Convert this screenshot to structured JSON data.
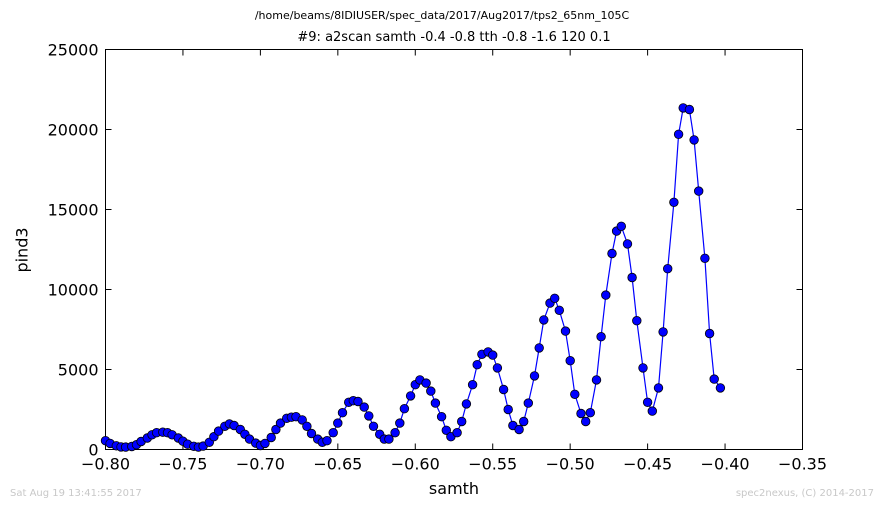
{
  "header": {
    "path": "/home/beams/8IDIUSER/spec_data/2017/Aug2017/tps2_65nm_105C",
    "scan": "#9: a2scan  samth -0.4 -0.8  tth -0.8 -1.6  120 0.1"
  },
  "footer": {
    "timestamp": "Sat Aug 19 13:41:55 2017",
    "credit": "spec2nexus, (C) 2014-2017"
  },
  "chart_data": {
    "type": "line",
    "xlabel": "samth",
    "ylabel": "pind3",
    "xlim": [
      -0.8,
      -0.35
    ],
    "ylim": [
      0,
      25000
    ],
    "xticks": [
      -0.8,
      -0.75,
      -0.7,
      -0.65,
      -0.6,
      -0.55,
      -0.5,
      -0.45,
      -0.4,
      -0.35
    ],
    "xtick_labels": [
      "−0.80",
      "−0.75",
      "−0.70",
      "−0.65",
      "−0.60",
      "−0.55",
      "−0.50",
      "−0.45",
      "−0.40",
      "−0.35"
    ],
    "yticks": [
      0,
      5000,
      10000,
      15000,
      20000,
      25000
    ],
    "ytick_labels": [
      "0",
      "5000",
      "10000",
      "15000",
      "20000",
      "25000"
    ],
    "grid": false,
    "series": [
      {
        "color": "#0000ff",
        "marker": "circle",
        "points": [
          [
            -0.8,
            550
          ],
          [
            -0.797,
            380
          ],
          [
            -0.793,
            230
          ],
          [
            -0.79,
            160
          ],
          [
            -0.787,
            150
          ],
          [
            -0.783,
            190
          ],
          [
            -0.78,
            300
          ],
          [
            -0.777,
            500
          ],
          [
            -0.773,
            720
          ],
          [
            -0.77,
            920
          ],
          [
            -0.767,
            1050
          ],
          [
            -0.763,
            1080
          ],
          [
            -0.76,
            1050
          ],
          [
            -0.757,
            920
          ],
          [
            -0.753,
            720
          ],
          [
            -0.75,
            520
          ],
          [
            -0.747,
            330
          ],
          [
            -0.743,
            200
          ],
          [
            -0.74,
            150
          ],
          [
            -0.737,
            210
          ],
          [
            -0.733,
            450
          ],
          [
            -0.73,
            800
          ],
          [
            -0.727,
            1150
          ],
          [
            -0.723,
            1450
          ],
          [
            -0.72,
            1600
          ],
          [
            -0.717,
            1500
          ],
          [
            -0.713,
            1250
          ],
          [
            -0.71,
            950
          ],
          [
            -0.707,
            650
          ],
          [
            -0.703,
            400
          ],
          [
            -0.7,
            250
          ],
          [
            -0.697,
            380
          ],
          [
            -0.693,
            750
          ],
          [
            -0.69,
            1250
          ],
          [
            -0.687,
            1650
          ],
          [
            -0.683,
            1950
          ],
          [
            -0.68,
            2020
          ],
          [
            -0.677,
            2050
          ],
          [
            -0.673,
            1850
          ],
          [
            -0.67,
            1450
          ],
          [
            -0.667,
            1000
          ],
          [
            -0.663,
            650
          ],
          [
            -0.66,
            450
          ],
          [
            -0.657,
            550
          ],
          [
            -0.653,
            1050
          ],
          [
            -0.65,
            1650
          ],
          [
            -0.647,
            2300
          ],
          [
            -0.643,
            2950
          ],
          [
            -0.64,
            3050
          ],
          [
            -0.637,
            3000
          ],
          [
            -0.633,
            2650
          ],
          [
            -0.63,
            2100
          ],
          [
            -0.627,
            1450
          ],
          [
            -0.623,
            950
          ],
          [
            -0.62,
            650
          ],
          [
            -0.617,
            650
          ],
          [
            -0.613,
            1050
          ],
          [
            -0.61,
            1650
          ],
          [
            -0.607,
            2550
          ],
          [
            -0.603,
            3350
          ],
          [
            -0.6,
            4050
          ],
          [
            -0.597,
            4350
          ],
          [
            -0.593,
            4150
          ],
          [
            -0.59,
            3650
          ],
          [
            -0.587,
            2900
          ],
          [
            -0.583,
            2050
          ],
          [
            -0.58,
            1200
          ],
          [
            -0.577,
            800
          ],
          [
            -0.573,
            1050
          ],
          [
            -0.57,
            1750
          ],
          [
            -0.567,
            2850
          ],
          [
            -0.563,
            4050
          ],
          [
            -0.56,
            5300
          ],
          [
            -0.557,
            5950
          ],
          [
            -0.553,
            6100
          ],
          [
            -0.55,
            5900
          ],
          [
            -0.547,
            5100
          ],
          [
            -0.543,
            3750
          ],
          [
            -0.54,
            2500
          ],
          [
            -0.537,
            1500
          ],
          [
            -0.533,
            1250
          ],
          [
            -0.53,
            1750
          ],
          [
            -0.527,
            2900
          ],
          [
            -0.523,
            4600
          ],
          [
            -0.52,
            6350
          ],
          [
            -0.517,
            8100
          ],
          [
            -0.513,
            9150
          ],
          [
            -0.51,
            9450
          ],
          [
            -0.507,
            8700
          ],
          [
            -0.503,
            7400
          ],
          [
            -0.5,
            5550
          ],
          [
            -0.497,
            3450
          ],
          [
            -0.493,
            2250
          ],
          [
            -0.49,
            1750
          ],
          [
            -0.487,
            2300
          ],
          [
            -0.483,
            4350
          ],
          [
            -0.48,
            7050
          ],
          [
            -0.477,
            9650
          ],
          [
            -0.473,
            12250
          ],
          [
            -0.47,
            13650
          ],
          [
            -0.467,
            13950
          ],
          [
            -0.463,
            12850
          ],
          [
            -0.46,
            10750
          ],
          [
            -0.457,
            8050
          ],
          [
            -0.453,
            5100
          ],
          [
            -0.45,
            2950
          ],
          [
            -0.447,
            2400
          ],
          [
            -0.443,
            3850
          ],
          [
            -0.44,
            7350
          ],
          [
            -0.437,
            11300
          ],
          [
            -0.433,
            15450
          ],
          [
            -0.43,
            19700
          ],
          [
            -0.427,
            21350
          ],
          [
            -0.423,
            21250
          ],
          [
            -0.42,
            19350
          ],
          [
            -0.417,
            16150
          ],
          [
            -0.413,
            11950
          ],
          [
            -0.41,
            7250
          ],
          [
            -0.407,
            4400
          ],
          [
            -0.403,
            3850
          ]
        ]
      }
    ]
  }
}
